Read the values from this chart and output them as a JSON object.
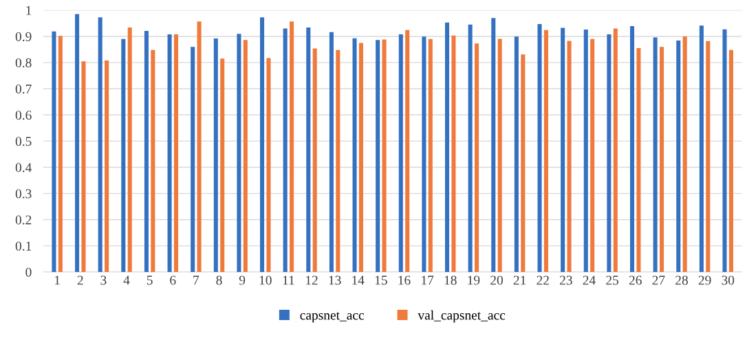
{
  "chart_data": {
    "type": "bar",
    "categories": [
      "1",
      "2",
      "3",
      "4",
      "5",
      "6",
      "7",
      "8",
      "9",
      "10",
      "11",
      "12",
      "13",
      "14",
      "15",
      "16",
      "17",
      "18",
      "19",
      "20",
      "21",
      "22",
      "23",
      "24",
      "25",
      "26",
      "27",
      "28",
      "29",
      "30"
    ],
    "series": [
      {
        "name": "capsnet_acc",
        "color": "#3571c1",
        "values": [
          0.919,
          0.985,
          0.973,
          0.89,
          0.921,
          0.908,
          0.86,
          0.892,
          0.91,
          0.973,
          0.93,
          0.934,
          0.916,
          0.893,
          0.886,
          0.908,
          0.899,
          0.953,
          0.945,
          0.97,
          0.899,
          0.947,
          0.933,
          0.926,
          0.908,
          0.939,
          0.896,
          0.884,
          0.941,
          0.927
        ]
      },
      {
        "name": "val_capsnet_acc",
        "color": "#f07a3c",
        "values": [
          0.902,
          0.805,
          0.808,
          0.934,
          0.848,
          0.908,
          0.957,
          0.815,
          0.886,
          0.817,
          0.957,
          0.854,
          0.848,
          0.875,
          0.888,
          0.924,
          0.89,
          0.903,
          0.873,
          0.891,
          0.831,
          0.924,
          0.883,
          0.89,
          0.93,
          0.855,
          0.86,
          0.9,
          0.882,
          0.848
        ]
      }
    ],
    "ylim": [
      0,
      1
    ],
    "yticks": [
      0,
      0.1,
      0.2,
      0.3,
      0.4,
      0.5,
      0.6,
      0.7,
      0.8,
      0.9,
      1
    ],
    "grid": "y",
    "legend": "bottom"
  }
}
